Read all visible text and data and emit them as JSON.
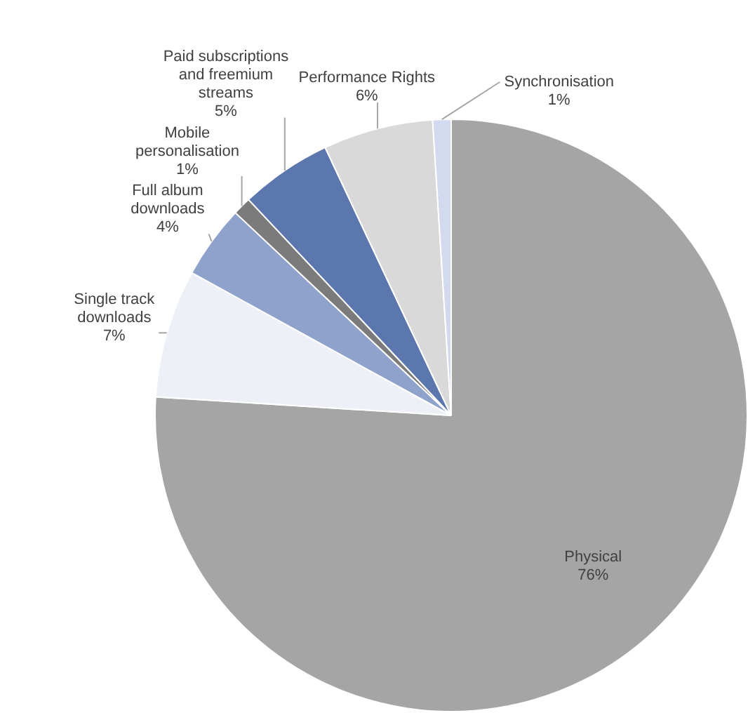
{
  "chart_data": {
    "type": "pie",
    "categories": [
      "Physical",
      "Single track downloads",
      "Full album downloads",
      "Mobile personalisation",
      "Paid subscriptions and freemium streams",
      "Performance Rights",
      "Synchronisation"
    ],
    "values": [
      76,
      7,
      4,
      1,
      5,
      6,
      1
    ],
    "value_labels": [
      "76%",
      "7%",
      "4%",
      "1%",
      "5%",
      "6%",
      "1%"
    ],
    "colors": [
      "#a5a5a5",
      "#eef0f8",
      "#8fa2cc",
      "#7b7b7b",
      "#5b77ad",
      "#d9d9d9",
      "#d3d9ee"
    ],
    "legend": false
  }
}
